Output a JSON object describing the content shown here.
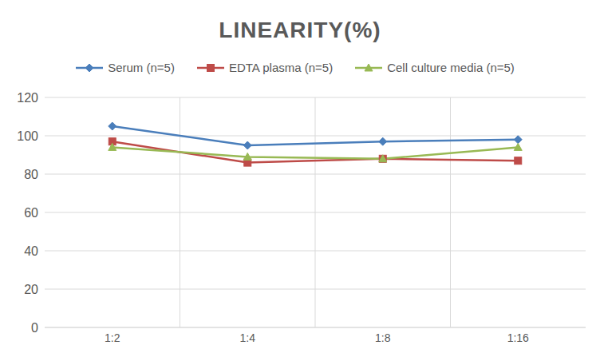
{
  "chart_data": {
    "type": "line",
    "title": "LINEARITY(%)",
    "categories": [
      "1:2",
      "1:4",
      "1:8",
      "1:16"
    ],
    "series": [
      {
        "name": "Serum (n=5)",
        "color": "#4a7ebb",
        "marker": "diamond",
        "values": [
          105,
          95,
          97,
          98
        ]
      },
      {
        "name": "EDTA plasma (n=5)",
        "color": "#be4b48",
        "marker": "square",
        "values": [
          97,
          86,
          88,
          87
        ]
      },
      {
        "name": "Cell culture media (n=5)",
        "color": "#98b954",
        "marker": "triangle",
        "values": [
          94,
          89,
          88,
          94
        ]
      }
    ],
    "ylim": [
      0,
      120
    ],
    "yticks": [
      0,
      20,
      40,
      60,
      80,
      100,
      120
    ],
    "grid": true,
    "legend": "top"
  }
}
